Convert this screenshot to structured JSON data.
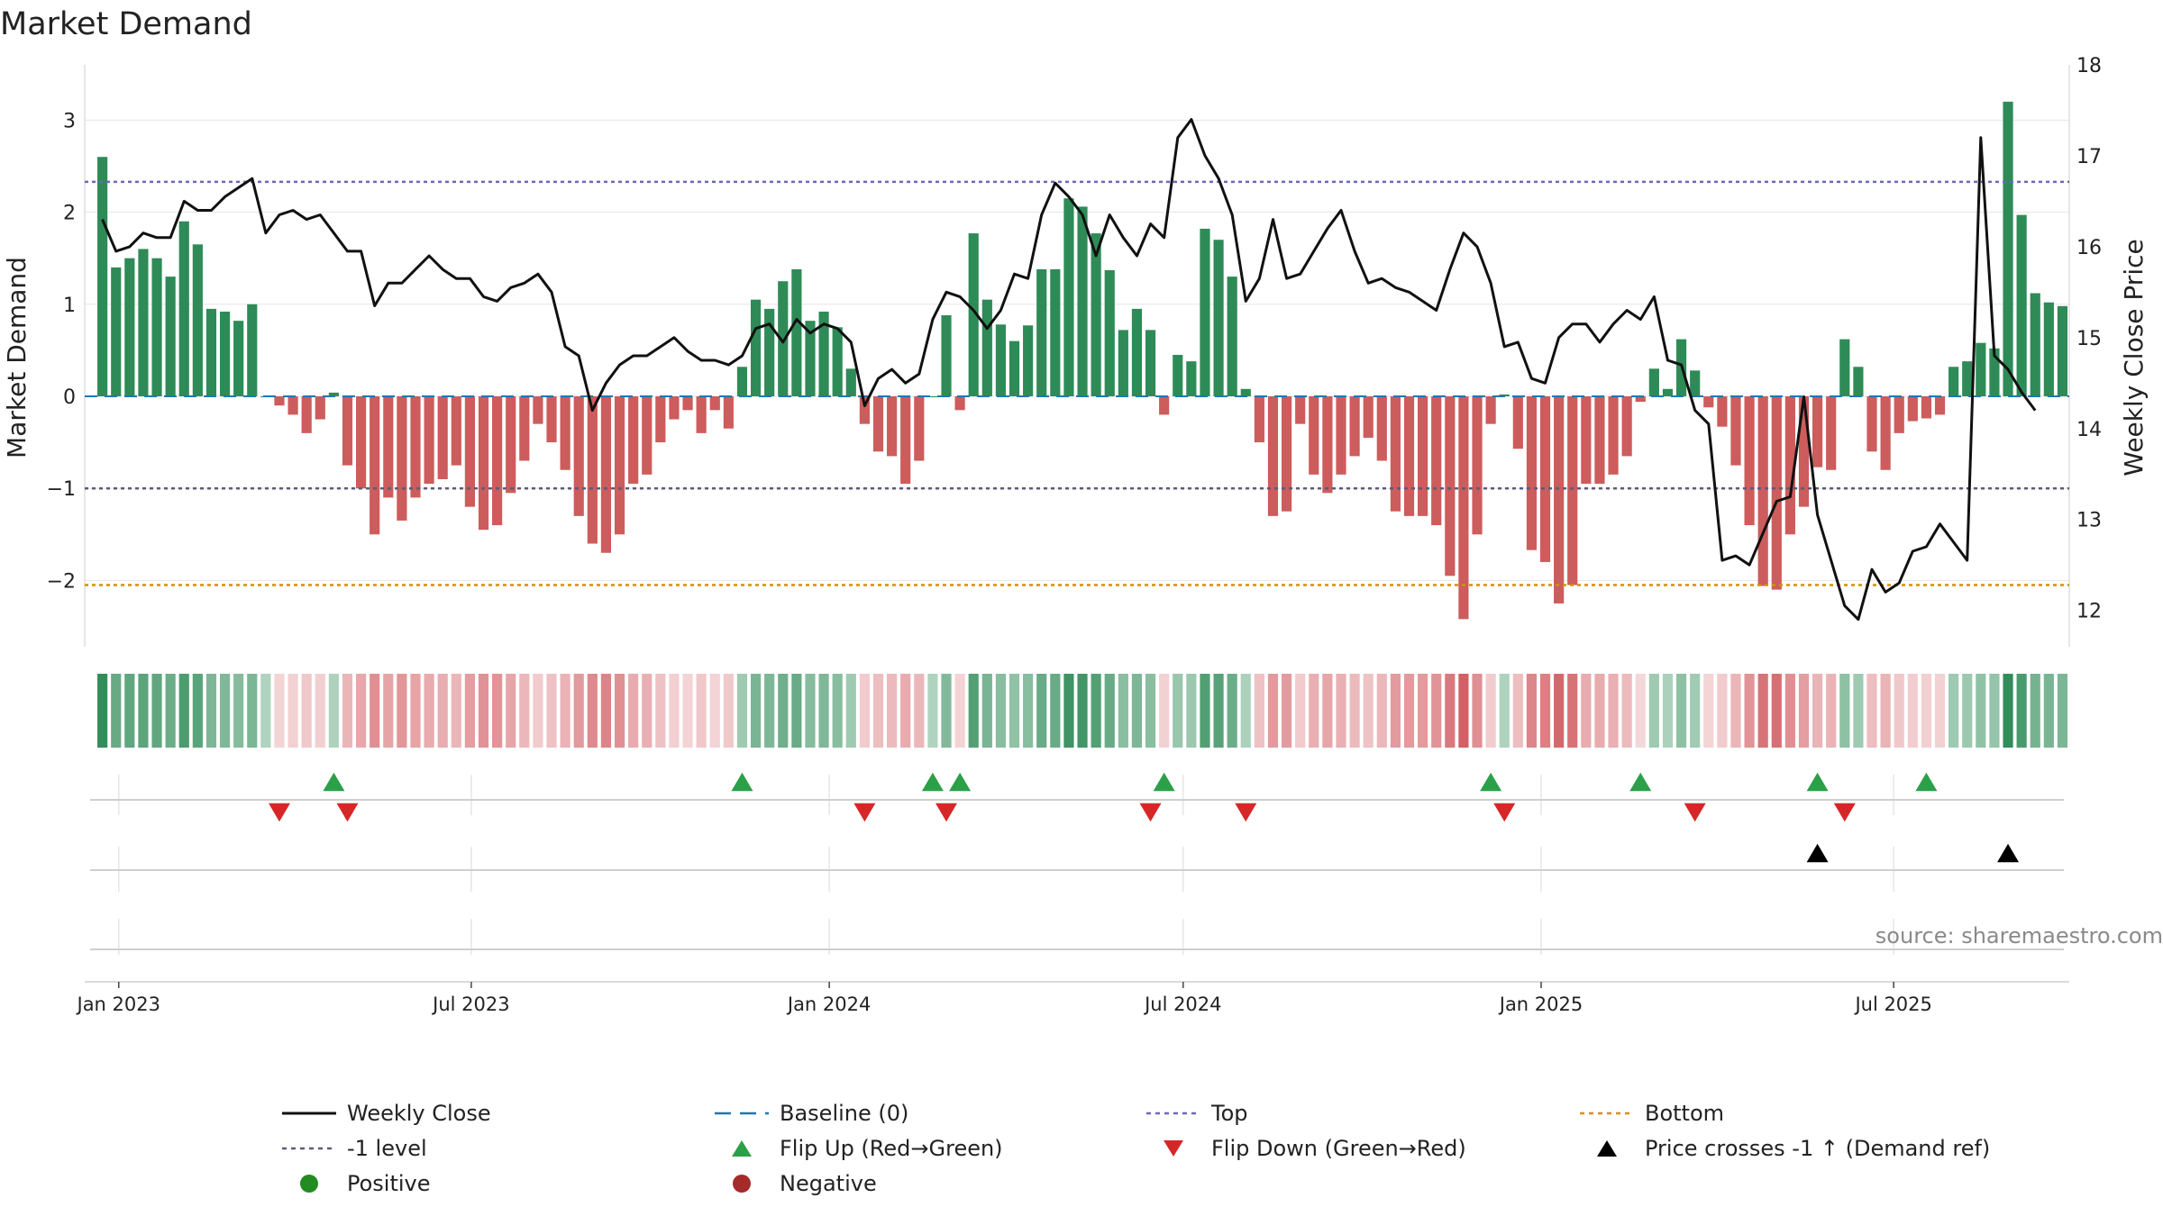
{
  "chart_data": {
    "type": "bar",
    "title": "Market Demand",
    "ylabel": "Market Demand",
    "y2label": "Weekly Close Price",
    "ylim": [
      -2.72,
      3.6
    ],
    "y2lim": [
      11.6,
      18
    ],
    "yticks": [
      3,
      2,
      1,
      0,
      -1,
      -2
    ],
    "ytick_labels": [
      "3",
      "2",
      "1",
      "0",
      "−1",
      "−2"
    ],
    "y2ticks": [
      18,
      17,
      16,
      15,
      14,
      13,
      12
    ],
    "y2tick_labels": [
      "18",
      "17",
      "16",
      "15",
      "14",
      "13",
      "12"
    ],
    "x_axis_range_weeks": [
      -1.3,
      144.5
    ],
    "date_ticks": [
      {
        "label": "Jan 2023",
        "week": 1.2
      },
      {
        "label": "Jul 2023",
        "week": 27.1
      },
      {
        "label": "Jan 2024",
        "week": 53.4
      },
      {
        "label": "Jul 2024",
        "week": 79.4
      },
      {
        "label": "Jan 2025",
        "week": 105.7
      },
      {
        "label": "Jul 2025",
        "week": 131.6
      }
    ],
    "bars": {
      "name": "Market Demand",
      "values": [
        2.6,
        1.4,
        1.5,
        1.6,
        1.5,
        1.3,
        1.9,
        1.65,
        0.95,
        0.92,
        0.82,
        1.0,
        0,
        -0.1,
        -0.2,
        -0.4,
        -0.25,
        0.04,
        -0.75,
        -1.0,
        -1.5,
        -1.1,
        -1.35,
        -1.1,
        -0.95,
        -0.9,
        -0.75,
        -1.2,
        -1.45,
        -1.4,
        -1.05,
        -0.7,
        -0.3,
        -0.5,
        -0.8,
        -1.3,
        -1.6,
        -1.7,
        -1.5,
        -0.95,
        -0.85,
        -0.5,
        -0.25,
        -0.15,
        -0.4,
        -0.15,
        -0.35,
        0.32,
        1.05,
        0.95,
        1.25,
        1.38,
        0.82,
        0.92,
        0.75,
        0.3,
        -0.3,
        -0.6,
        -0.65,
        -0.95,
        -0.7,
        0.0,
        0.88,
        -0.15,
        1.77,
        1.05,
        0.78,
        0.6,
        0.77,
        1.38,
        1.38,
        2.15,
        2.06,
        1.77,
        1.37,
        0.72,
        0.95,
        0.72,
        -0.2,
        0.45,
        0.38,
        1.82,
        1.7,
        1.3,
        0.08,
        -0.5,
        -1.3,
        -1.25,
        -0.3,
        -0.85,
        -1.05,
        -0.85,
        -0.65,
        -0.45,
        -0.7,
        -1.25,
        -1.3,
        -1.3,
        -1.4,
        -1.95,
        -2.42,
        -1.5,
        -0.3,
        0.02,
        -0.57,
        -1.67,
        -1.8,
        -2.25,
        -2.05,
        -0.95,
        -0.95,
        -0.85,
        -0.65,
        -0.06,
        0.3,
        0.08,
        0.62,
        0.28,
        -0.12,
        -0.33,
        -0.75,
        -1.4,
        -2.06,
        -2.1,
        -1.5,
        -1.2,
        -0.77,
        -0.8,
        0.62,
        0.32,
        -0.6,
        -0.8,
        -0.4,
        -0.27,
        -0.24,
        -0.2,
        0.32,
        0.38,
        0.58,
        0.52,
        3.2,
        1.97,
        1.12,
        1.02,
        0.98
      ]
    },
    "weekly_close": {
      "name": "Weekly Close",
      "values": [
        16.3,
        15.95,
        16.0,
        16.15,
        16.1,
        16.1,
        16.5,
        16.4,
        16.4,
        16.55,
        16.65,
        16.75,
        16.15,
        16.35,
        16.4,
        16.3,
        16.35,
        16.15,
        15.95,
        15.95,
        15.35,
        15.6,
        15.6,
        15.75,
        15.9,
        15.75,
        15.65,
        15.65,
        15.45,
        15.4,
        15.55,
        15.6,
        15.7,
        15.5,
        14.9,
        14.8,
        14.2,
        14.5,
        14.7,
        14.8,
        14.8,
        14.9,
        15.0,
        14.85,
        14.75,
        14.75,
        14.7,
        14.8,
        15.1,
        15.15,
        14.95,
        15.2,
        15.05,
        15.15,
        15.1,
        14.95,
        14.25,
        14.55,
        14.65,
        14.5,
        14.6,
        15.2,
        15.5,
        15.45,
        15.3,
        15.1,
        15.3,
        15.7,
        15.65,
        16.35,
        16.7,
        16.55,
        16.35,
        15.9,
        16.35,
        16.1,
        15.9,
        16.25,
        16.1,
        17.2,
        17.4,
        17.0,
        16.75,
        16.35,
        15.4,
        15.65,
        16.3,
        15.65,
        15.7,
        15.95,
        16.2,
        16.4,
        15.95,
        15.6,
        15.65,
        15.55,
        15.5,
        15.4,
        15.3,
        15.75,
        16.15,
        16.0,
        15.6,
        14.9,
        14.95,
        14.55,
        14.5,
        15.0,
        15.15,
        15.15,
        14.95,
        15.15,
        15.3,
        15.2,
        15.45,
        14.75,
        14.7,
        14.2,
        14.05,
        12.55,
        12.6,
        12.5,
        12.85,
        13.2,
        13.25,
        14.35,
        13.05,
        12.55,
        12.05,
        11.9,
        12.45,
        12.2,
        12.3,
        12.65,
        12.7,
        12.95,
        12.75,
        12.55,
        17.2,
        14.8,
        14.65,
        14.4,
        14.2
      ]
    },
    "strip": {
      "name": "Market Demand intensity strip",
      "values_ref": "bars",
      "positive_color": "#2e8b57",
      "negative_color": "#c8383f"
    },
    "flip_up_weeks": [
      17,
      47,
      61,
      63,
      78,
      102,
      113,
      126,
      134
    ],
    "flip_down_weeks": [
      13,
      18,
      56,
      62,
      77,
      84,
      103,
      117,
      128
    ],
    "price_crosses_weeks": [
      126,
      140
    ],
    "lines": [
      {
        "name": "Baseline (0)",
        "value": 0,
        "axis": "left"
      },
      {
        "name": "Top",
        "value": 2.33,
        "axis": "left"
      },
      {
        "name": "-1 level",
        "value": -1.0,
        "axis": "left"
      },
      {
        "name": "Bottom",
        "value": -2.05,
        "axis": "left"
      }
    ],
    "annotation": "source: sharemaestro.com"
  },
  "legend": {
    "items": [
      {
        "key": "weekly_close",
        "label": "Weekly Close"
      },
      {
        "key": "baseline",
        "label": "Baseline (0)"
      },
      {
        "key": "top",
        "label": "Top"
      },
      {
        "key": "bottom",
        "label": "Bottom"
      },
      {
        "key": "minus1",
        "label": "-1 level"
      },
      {
        "key": "flip_up",
        "label": "Flip Up (Red→Green)"
      },
      {
        "key": "flip_down",
        "label": "Flip Down (Green→Red)"
      },
      {
        "key": "price_cross",
        "label": "Price crosses -1 ↑ (Demand ref)"
      },
      {
        "key": "positive",
        "label": "Positive"
      },
      {
        "key": "negative",
        "label": "Negative"
      }
    ]
  },
  "colors": {
    "positive": "#2e8b57",
    "negative": "#cd5c5c",
    "close": "#111111",
    "baseline": "#1f77b4",
    "top": "#6a6ab8",
    "minus1": "#5c5c78",
    "bottom": "#d4900a",
    "flip_up": "#2ca048",
    "flip_down": "#d62728",
    "price_cross": "#000000",
    "positive_dot": "#228b22",
    "negative_dot": "#a52a2a",
    "grid": "#e6e6e6",
    "axis": "#cfcfcf"
  }
}
